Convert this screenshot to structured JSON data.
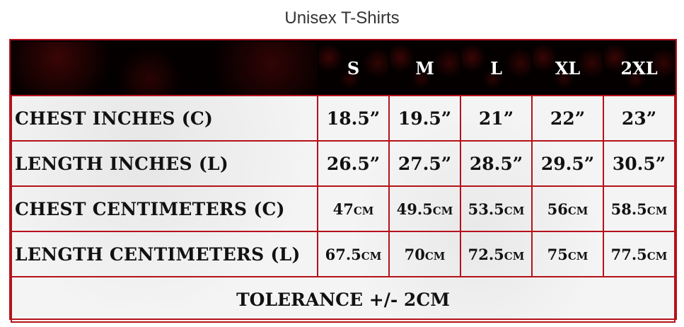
{
  "title": "Unisex T-Shirts",
  "colors": {
    "border": "#b5121b",
    "header_bg": "#050000"
  },
  "sizes": [
    "S",
    "M",
    "L",
    "XL",
    "2XL"
  ],
  "rows": [
    {
      "label": "Chest Inches (C)",
      "values": [
        "18.5”",
        "19.5”",
        "21”",
        "22”",
        "23”"
      ]
    },
    {
      "label": "Length Inches (L)",
      "values": [
        "26.5”",
        "27.5”",
        "28.5”",
        "29.5”",
        "30.5”"
      ]
    },
    {
      "label": "Chest Centimeters (C)",
      "values": [
        "47",
        "49.5",
        "53.5",
        "56",
        "58.5"
      ],
      "unit": "cm"
    },
    {
      "label": "Length Centimeters (L)",
      "values": [
        "67.5",
        "70",
        "72.5",
        "75",
        "77.5"
      ],
      "unit": "cm"
    }
  ],
  "tolerance": "Tolerance +/- 2cm"
}
